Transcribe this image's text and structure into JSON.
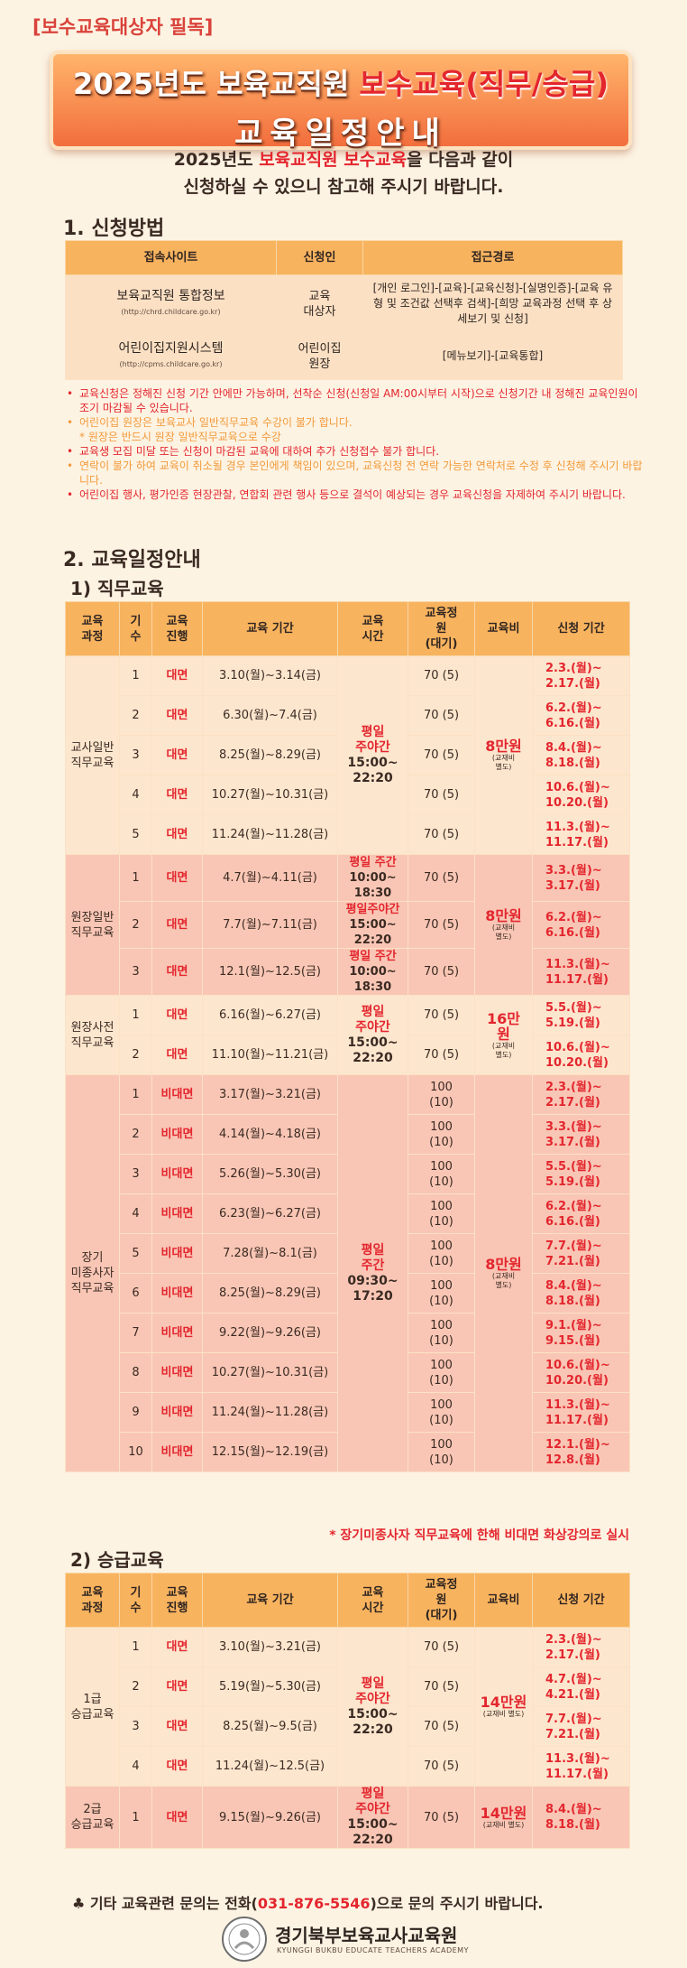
{
  "header": {
    "tag": "[보수교육대상자 필독]",
    "title_part1": "2025년도 보육교직원 ",
    "title_highlight": "보수교육(직무/승급)",
    "title_line2": "교육일정안내"
  },
  "intro": {
    "line1_prefix": "2025년도 ",
    "line1_highlight": "보육교직원 보수교육",
    "line1_suffix": "을 다음과 같이",
    "line2": "신청하실 수 있으니 참고해 주시기 바랍니다."
  },
  "section1": {
    "title": "1. 신청방법",
    "headers": [
      "접속사이트",
      "신청인",
      "접근경로"
    ],
    "rows": [
      {
        "site": "보육교직원 통합정보",
        "url": "(http://chrd.childcare.go.kr)",
        "applicant": "교육\n대상자",
        "route": "[개인 로그인]-[교육]-[교육신청]-[실명인증]-[교육 유형 및 조건값 선택후 검색]-[희망 교육과정 선택 후 상세보기 및 신청]"
      },
      {
        "site": "어린이집지원시스템",
        "url": "(http://cpms.childcare.go.kr)",
        "applicant": "어린이집\n원장",
        "route": "[메뉴보기]-[교육통합]"
      }
    ],
    "notes": [
      {
        "color": "red",
        "text": "교육신청은 정해진 신청 기간 안에만 가능하며, 선착순 신청(신청일 AM:00시부터 시작)으로 신청기간 내 정해진 교육인원이 조기 마감될 수 있습니다."
      },
      {
        "color": "org",
        "text": "어린이집 원장은 보육교사 일반직무교육 수강이 불가 합니다."
      },
      {
        "color": "org",
        "text": "* 원장은 반드시 원장 일반직무교육으로 수강",
        "sub": true
      },
      {
        "color": "red",
        "text": "교육생 모집 미달 또는 신청이 마감된 교육에 대하여 추가 신청접수 불가 합니다."
      },
      {
        "color": "org",
        "text": "연락이 불가 하여 교육이 취소될 경우 본인에게 책임이 있으며, 교육신청 전 연락 가능한 연락처로 수정 후 신청해 주시기 바랍니다."
      },
      {
        "color": "red",
        "text": "어린이집 행사, 평가인증 현장관찰, 연합회 관련 행사 등으로 결석이 예상되는 경우 교육신청을 자제하여 주시기 바랍니다."
      }
    ]
  },
  "section2": {
    "title": "2. 교육일정안내",
    "headers": [
      "교육\n과정",
      "기\n수",
      "교육\n진행",
      "교육 기간",
      "교육\n시간",
      "교육정\n원\n(대기)",
      "교육비",
      "신청 기간"
    ],
    "duty": {
      "title": "1) 직무교육",
      "groups": [
        {
          "course": "교사일반\n직무교육",
          "fee": "8만원",
          "fee_note": "(교재비\n별도)",
          "bg": "a",
          "rows": [
            {
              "no": "1",
              "mode": "대면",
              "period": "3.10(월)~3.14(금)",
              "cap": "70 (5)",
              "apply": "2.3.(월)~\n2.17.(월)"
            },
            {
              "no": "2",
              "mode": "대면",
              "period": "6.30(월)~7.4(금)",
              "cap": "70 (5)",
              "apply": "6.2.(월)~\n6.16.(월)"
            },
            {
              "no": "3",
              "mode": "대면",
              "period": "8.25(월)~8.29(금)",
              "cap": "70 (5)",
              "apply": "8.4.(월)~\n8.18.(월)"
            },
            {
              "no": "4",
              "mode": "대면",
              "period": "10.27(월)~10.31(금)",
              "cap": "70 (5)",
              "apply": "10.6.(월)~\n10.20.(월)"
            },
            {
              "no": "5",
              "mode": "대면",
              "period": "11.24(월)~11.28(금)",
              "cap": "70 (5)",
              "apply": "11.3.(월)~\n11.17.(월)"
            }
          ],
          "time": "평일\n주야간",
          "time_hours": "15:00~\n22:20"
        },
        {
          "course": "원장일반\n직무교육",
          "fee": "8만원",
          "fee_note": "(교재비\n별도)",
          "bg": "b",
          "rows": [
            {
              "no": "1",
              "mode": "대면",
              "period": "4.7(월)~4.11(금)",
              "time": "평일 주간",
              "time_hours": "10:00~\n18:30",
              "cap": "70 (5)",
              "apply": "3.3.(월)~\n3.17.(월)"
            },
            {
              "no": "2",
              "mode": "대면",
              "period": "7.7(월)~7.11(금)",
              "time": "평일주야간",
              "time_hours": "15:00~\n22:20",
              "cap": "70 (5)",
              "apply": "6.2.(월)~\n6.16.(월)"
            },
            {
              "no": "3",
              "mode": "대면",
              "period": "12.1(월)~12.5(금)",
              "time": "평일 주간",
              "time_hours": "10:00~\n18:30",
              "cap": "70 (5)",
              "apply": "11.3.(월)~\n11.17.(월)"
            }
          ]
        },
        {
          "course": "원장사전\n직무교육",
          "fee": "16만\n원",
          "fee_note": "(교재비\n별도)",
          "bg": "a",
          "rows": [
            {
              "no": "1",
              "mode": "대면",
              "period": "6.16(월)~6.27(금)",
              "cap": "70 (5)",
              "apply": "5.5.(월)~\n5.19.(월)"
            },
            {
              "no": "2",
              "mode": "대면",
              "period": "11.10(월)~11.21(금)",
              "cap": "70 (5)",
              "apply": "10.6.(월)~\n10.20.(월)"
            }
          ],
          "time": "평일\n주야간",
          "time_hours": "15:00~\n22:20"
        },
        {
          "course": "장기\n미종사자\n직무교육",
          "fee": "8만원",
          "fee_note": "(교재비\n별도)",
          "bg": "b",
          "rows": [
            {
              "no": "1",
              "mode": "비대면",
              "period": "3.17(월)~3.21(금)",
              "cap": "100\n(10)",
              "apply": "2.3.(월)~\n2.17.(월)"
            },
            {
              "no": "2",
              "mode": "비대면",
              "period": "4.14(월)~4.18(금)",
              "cap": "100\n(10)",
              "apply": "3.3.(월)~\n3.17.(월)"
            },
            {
              "no": "3",
              "mode": "비대면",
              "period": "5.26(월)~5.30(금)",
              "cap": "100\n(10)",
              "apply": "5.5.(월)~\n5.19.(월)"
            },
            {
              "no": "4",
              "mode": "비대면",
              "period": "6.23(월)~6.27(금)",
              "cap": "100\n(10)",
              "apply": "6.2.(월)~\n6.16.(월)"
            },
            {
              "no": "5",
              "mode": "비대면",
              "period": "7.28(월)~8.1(금)",
              "cap": "100\n(10)",
              "apply": "7.7.(월)~\n7.21.(월)"
            },
            {
              "no": "6",
              "mode": "비대면",
              "period": "8.25(월)~8.29(금)",
              "cap": "100\n(10)",
              "apply": "8.4.(월)~\n8.18.(월)"
            },
            {
              "no": "7",
              "mode": "비대면",
              "period": "9.22(월)~9.26(금)",
              "cap": "100\n(10)",
              "apply": "9.1.(월)~\n9.15.(월)"
            },
            {
              "no": "8",
              "mode": "비대면",
              "period": "10.27(월)~10.31(금)",
              "cap": "100\n(10)",
              "apply": "10.6.(월)~\n10.20.(월)"
            },
            {
              "no": "9",
              "mode": "비대면",
              "period": "11.24(월)~11.28(금)",
              "cap": "100\n(10)",
              "apply": "11.3.(월)~\n11.17.(월)"
            },
            {
              "no": "10",
              "mode": "비대면",
              "period": "12.15(월)~12.19(금)",
              "cap": "100\n(10)",
              "apply": "12.1.(월)~\n12.8.(월)"
            }
          ],
          "time": "평일\n주간",
          "time_hours": "09:30~\n17:20"
        }
      ],
      "remark": "* 장기미종사자 직무교육에 한해 비대면 화상강의로 실시"
    },
    "promo": {
      "title": "2) 승급교육",
      "groups": [
        {
          "course": "1급\n승급교육",
          "fee": "14만원",
          "fee_note": "(교재비 별도)",
          "bg": "a",
          "rows": [
            {
              "no": "1",
              "mode": "대면",
              "period": "3.10(월)~3.21(금)",
              "cap": "70 (5)",
              "apply": "2.3.(월)~\n2.17.(월)"
            },
            {
              "no": "2",
              "mode": "대면",
              "period": "5.19(월)~5.30(금)",
              "cap": "70 (5)",
              "apply": "4.7.(월)~\n4.21.(월)"
            },
            {
              "no": "3",
              "mode": "대면",
              "period": "8.25(월)~9.5(금)",
              "cap": "70 (5)",
              "apply": "7.7.(월)~\n7.21.(월)"
            },
            {
              "no": "4",
              "mode": "대면",
              "period": "11.24(월)~12.5(금)",
              "cap": "70 (5)",
              "apply": "11.3.(월)~\n11.17.(월)"
            }
          ],
          "time": "평일\n주야간",
          "time_hours": "15:00~\n22:20"
        },
        {
          "course": "2급\n승급교육",
          "fee": "14만원",
          "fee_note": "(교재비 별도)",
          "bg": "b",
          "rows": [
            {
              "no": "1",
              "mode": "대면",
              "period": "9.15(월)~9.26(금)",
              "cap": "70 (5)",
              "apply": "8.4.(월)~\n8.18.(월)"
            }
          ],
          "time": "평일\n주야간",
          "time_hours": "15:00~\n22:20"
        }
      ]
    }
  },
  "footer": {
    "question_prefix": "기타 교육관련 문의는 전화(",
    "phone": "031-876-5546",
    "question_suffix": ")으로  문의 주시기 바랍니다.",
    "org_name": "경기북부보육교사교육원",
    "org_eng": "KYUNGGI BUKBU EDUCATE TEACHERS ACADEMY"
  },
  "colors": {
    "accent_red": "#e3262e",
    "header_orange": "#f8b35f",
    "row_light": "#fde6ce",
    "row_pink": "#f9c6b5"
  }
}
